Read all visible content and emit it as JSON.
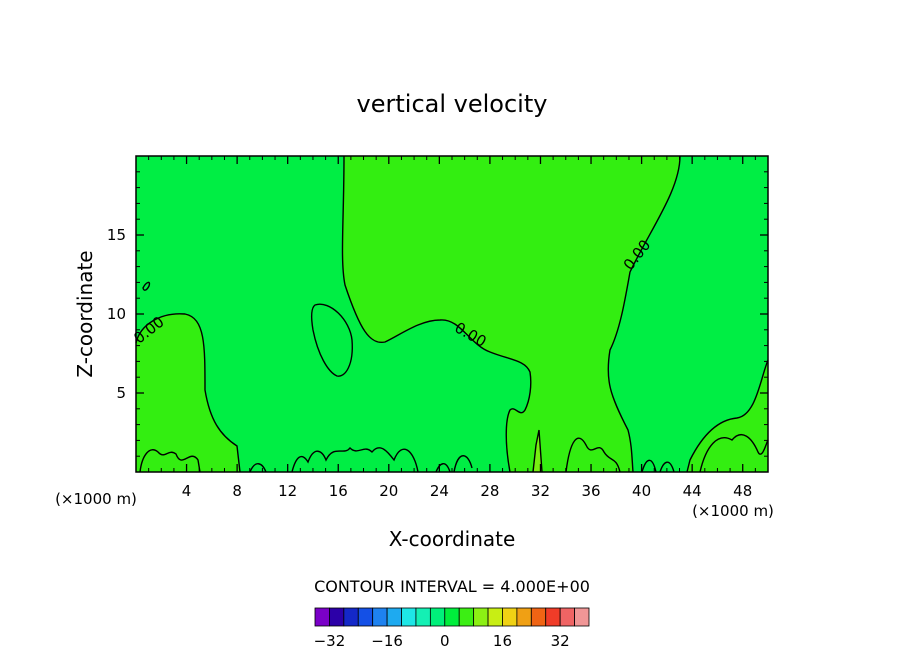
{
  "chart_data": {
    "type": "contour",
    "title": "vertical velocity",
    "xlabel": "X-coordinate",
    "ylabel": "Z-coordinate",
    "x_unit": "(×1000 m)",
    "x_unit_right": "(×1000 m)",
    "xlim": [
      0,
      50
    ],
    "ylim": [
      0,
      20
    ],
    "x_ticks": [
      4,
      8,
      12,
      16,
      20,
      24,
      28,
      32,
      36,
      40,
      44,
      48
    ],
    "y_ticks": [
      5,
      10,
      15
    ],
    "contour_labels": [
      "0.00",
      "0.00",
      "0.00",
      "0.00"
    ],
    "contour_interval_text": "CONTOUR INTERVAL = 4.000E+00",
    "colorbar": {
      "colors": [
        "#7a00c8",
        "#2c00a8",
        "#1428c8",
        "#1450e6",
        "#1e82f0",
        "#1eaaf0",
        "#1ee6e6",
        "#14f0b4",
        "#00f07a",
        "#00ee3c",
        "#3cee14",
        "#8cf014",
        "#c8ee14",
        "#f0d214",
        "#f0a014",
        "#f06414",
        "#f03c28",
        "#f06464",
        "#f09696"
      ],
      "tick_labels": [
        "−32",
        "−16",
        "0",
        "16",
        "32"
      ],
      "tick_values": [
        -32,
        -16,
        0,
        16,
        32
      ]
    },
    "fills": {
      "positive": "#33ee11",
      "negative": "#00ee44",
      "strong_positive": "#77ee11"
    }
  }
}
